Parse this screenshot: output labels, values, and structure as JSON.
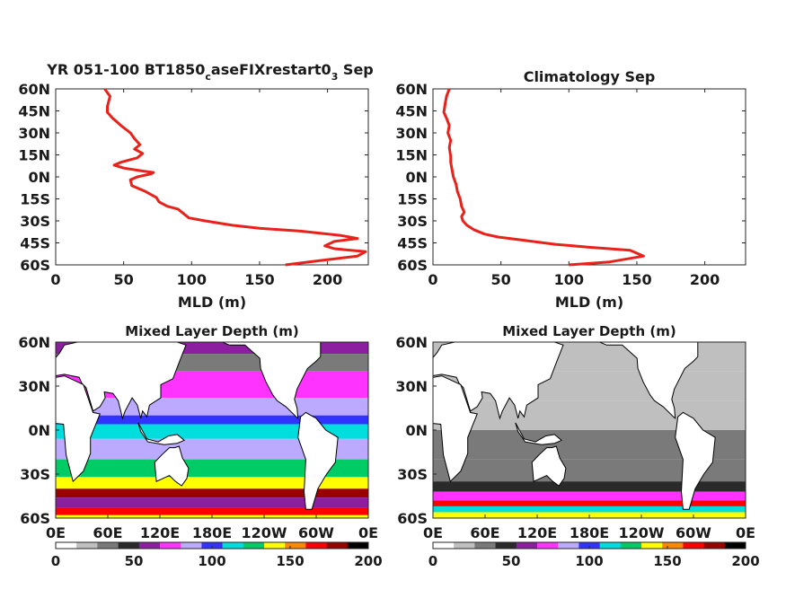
{
  "chart_data": [
    {
      "id": "profile_model",
      "type": "line",
      "title": "YR 051-100 BT1850",
      "title_sub": "c",
      "title_mid": "aseFIXrestart0",
      "title_sub2": "3",
      "title_end": " Sep",
      "xlabel": "MLD (m)",
      "ylabel": "",
      "xlim": [
        0,
        230
      ],
      "ylim": [
        -60,
        60
      ],
      "xticks": [
        "0",
        "50",
        "100",
        "150",
        "200"
      ],
      "yticks": [
        "60N",
        "45N",
        "30N",
        "15N",
        "0N",
        "15S",
        "30S",
        "45S",
        "60S"
      ],
      "series": [
        {
          "color": "#e8221b",
          "x": [
            169,
            195,
            222,
            228,
            205,
            198,
            205,
            222,
            210,
            180,
            150,
            130,
            110,
            98,
            94,
            90,
            82,
            76,
            74,
            66,
            56,
            55,
            60,
            70,
            72,
            64,
            50,
            43,
            48,
            60,
            64,
            58,
            62,
            58,
            55,
            48,
            42,
            38,
            38,
            40,
            36
          ],
          "y": [
            -60,
            -57,
            -54,
            -51,
            -49,
            -47,
            -44,
            -42,
            -40,
            -37,
            -35,
            -33,
            -30,
            -28,
            -25,
            -22,
            -20,
            -17,
            -14,
            -10,
            -6,
            -2,
            0,
            2,
            3,
            4,
            6,
            8,
            10,
            13,
            16,
            19,
            22,
            26,
            30,
            35,
            40,
            44,
            48,
            55,
            60
          ]
        }
      ]
    },
    {
      "id": "profile_climatology",
      "type": "line",
      "title": "Climatology Sep",
      "xlabel": "MLD (m)",
      "ylabel": "",
      "xlim": [
        0,
        230
      ],
      "ylim": [
        -60,
        60
      ],
      "xticks": [
        "0",
        "50",
        "100",
        "150",
        "200"
      ],
      "yticks": [
        "60N",
        "45N",
        "30N",
        "15N",
        "0N",
        "15S",
        "30S",
        "45S",
        "60S"
      ],
      "series": [
        {
          "color": "#e8221b",
          "x": [
            100,
            130,
            155,
            145,
            115,
            90,
            65,
            48,
            38,
            30,
            25,
            22,
            21,
            23,
            21,
            20,
            18,
            17,
            15,
            14,
            13,
            13,
            12,
            13,
            11,
            12,
            10,
            8,
            9,
            10,
            12
          ],
          "y": [
            -60,
            -58,
            -54,
            -50,
            -48,
            -46,
            -43,
            -41,
            -39,
            -36,
            -33,
            -30,
            -27,
            -24,
            -20,
            -15,
            -10,
            -5,
            0,
            5,
            10,
            14,
            20,
            25,
            30,
            35,
            40,
            44,
            50,
            55,
            60
          ]
        }
      ]
    },
    {
      "id": "map_model",
      "type": "heatmap",
      "title": "Mixed Layer Depth (m)",
      "xticks": [
        "0E",
        "60E",
        "120E",
        "180E",
        "120W",
        "60W",
        "0E"
      ],
      "yticks": [
        "60N",
        "30N",
        "0N",
        "30S",
        "60S"
      ],
      "colorbar": {
        "ticks": [
          "0",
          "50",
          "100",
          "150",
          "200"
        ],
        "range": [
          0,
          200
        ],
        "colors": [
          "#ffffff",
          "#bfbfbf",
          "#7a7a7a",
          "#2a2a2a",
          "#8b1fa0",
          "#ff33ff",
          "#bbaaff",
          "#3333ff",
          "#00dddd",
          "#00cc66",
          "#ffff00",
          "#ff8800",
          "#ff0000",
          "#990000",
          "#000000"
        ]
      },
      "bands": [
        {
          "lat": [
            60,
            52
          ],
          "level": 60
        },
        {
          "lat": [
            52,
            40
          ],
          "level": 30
        },
        {
          "lat": [
            40,
            22
          ],
          "level": 75
        },
        {
          "lat": [
            22,
            10
          ],
          "level": 82
        },
        {
          "lat": [
            10,
            4
          ],
          "level": 95
        },
        {
          "lat": [
            4,
            -6
          ],
          "level": 110
        },
        {
          "lat": [
            -6,
            -20
          ],
          "level": 85
        },
        {
          "lat": [
            -20,
            -32
          ],
          "level": 125
        },
        {
          "lat": [
            -32,
            -40
          ],
          "level": 140
        },
        {
          "lat": [
            -40,
            -46
          ],
          "level": 185
        },
        {
          "lat": [
            -46,
            -53
          ],
          "level": 60
        },
        {
          "lat": [
            -53,
            -58
          ],
          "level": 170
        },
        {
          "lat": [
            -58,
            -60
          ],
          "level": 140
        }
      ]
    },
    {
      "id": "map_climatology",
      "type": "heatmap",
      "title": "Mixed Layer Depth (m)",
      "xticks": [
        "0E",
        "60E",
        "120E",
        "180E",
        "120W",
        "60W",
        "0E"
      ],
      "yticks": [
        "60N",
        "30N",
        "0N",
        "30S",
        "60S"
      ],
      "colorbar": {
        "ticks": [
          "0",
          "50",
          "100",
          "150",
          "200"
        ],
        "range": [
          0,
          200
        ],
        "colors": [
          "#ffffff",
          "#bfbfbf",
          "#7a7a7a",
          "#2a2a2a",
          "#8b1fa0",
          "#ff33ff",
          "#bbaaff",
          "#3333ff",
          "#00dddd",
          "#00cc66",
          "#ffff00",
          "#ff8800",
          "#ff0000",
          "#990000",
          "#000000"
        ]
      },
      "bands": [
        {
          "lat": [
            60,
            40
          ],
          "level": 14
        },
        {
          "lat": [
            40,
            20
          ],
          "level": 18
        },
        {
          "lat": [
            20,
            0
          ],
          "level": 22
        },
        {
          "lat": [
            0,
            -20
          ],
          "level": 30
        },
        {
          "lat": [
            -20,
            -35
          ],
          "level": 38
        },
        {
          "lat": [
            -35,
            -42
          ],
          "level": 45
        },
        {
          "lat": [
            -42,
            -48
          ],
          "level": 75
        },
        {
          "lat": [
            -48,
            -52
          ],
          "level": 170
        },
        {
          "lat": [
            -52,
            -56
          ],
          "level": 115
        },
        {
          "lat": [
            -56,
            -60
          ],
          "level": 140
        }
      ]
    }
  ]
}
